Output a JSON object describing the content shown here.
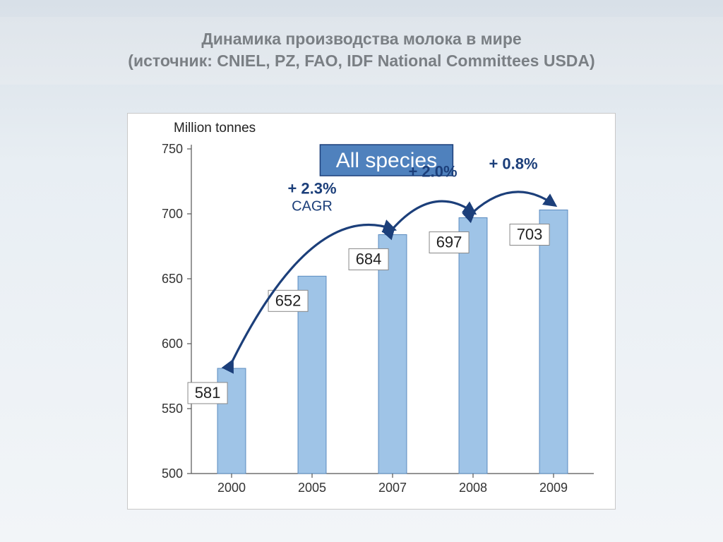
{
  "title_line1": "Динамика производства молока в мире",
  "title_line2": "(источник: CNIEL, PZ, FAO, IDF National Committees USDA)",
  "chart": {
    "type": "bar",
    "y_label": "Million tonnes",
    "ylim": [
      500,
      750
    ],
    "ytick_step": 50,
    "yticks": [
      500,
      550,
      600,
      650,
      700,
      750
    ],
    "categories": [
      "2000",
      "2005",
      "2007",
      "2008",
      "2009"
    ],
    "values": [
      581,
      652,
      684,
      697,
      703
    ],
    "bar_color": "#9fc4e7",
    "bar_stroke": "#5a8bbf",
    "bar_width": 0.35,
    "axis_color": "#555555",
    "background_color": "#ffffff",
    "value_box_bg": "#ffffff",
    "value_box_stroke": "#888888",
    "value_fontsize": 22,
    "tick_fontsize": 18,
    "ylabel_fontsize": 19,
    "callout": {
      "text": "All species",
      "bg": "#4f81bd",
      "stroke": "#1c3f7a",
      "text_color": "#ffffff",
      "fontsize": 30
    },
    "annotations": [
      {
        "text_top": "+ 2.3%",
        "text_bottom": "CAGR",
        "between": [
          0,
          2
        ]
      },
      {
        "text_top": "+ 2.0%",
        "between": [
          2,
          3
        ]
      },
      {
        "text_top": "+ 0.8%",
        "between": [
          3,
          4
        ]
      }
    ],
    "annotation_color": "#1c3f7a",
    "annotation_fontsize": 22,
    "arrow_stroke": "#1c3f7a",
    "arrow_width": 3.2
  },
  "page_bg_top": "#d8e0e8",
  "page_bg_bottom": "#f2f5f8"
}
